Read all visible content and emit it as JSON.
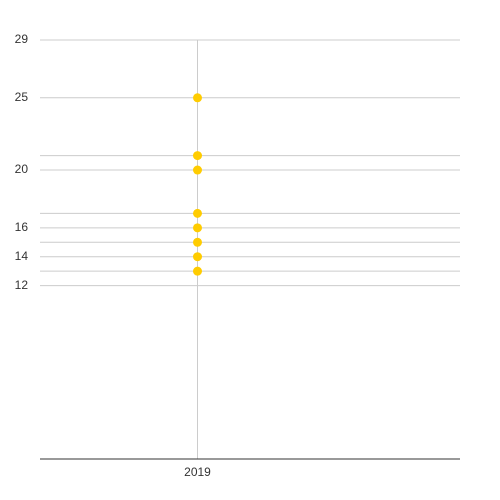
{
  "chart_data": {
    "type": "scatter",
    "categories": [
      null,
      "2019",
      null,
      null
    ],
    "series": [
      {
        "color": "#ffcc00",
        "x": [
          "2019",
          "2019",
          "2019",
          "2019",
          "2019",
          "2019",
          "2019",
          "2019"
        ],
        "values": [
          25,
          21,
          20,
          17,
          16,
          15,
          14,
          13
        ]
      }
    ],
    "ylim": [
      0,
      29
    ],
    "yticks": [
      29,
      25,
      20,
      16,
      14,
      12
    ],
    "y_minor_ticks": [
      21,
      17,
      15,
      13
    ],
    "grid": true
  }
}
